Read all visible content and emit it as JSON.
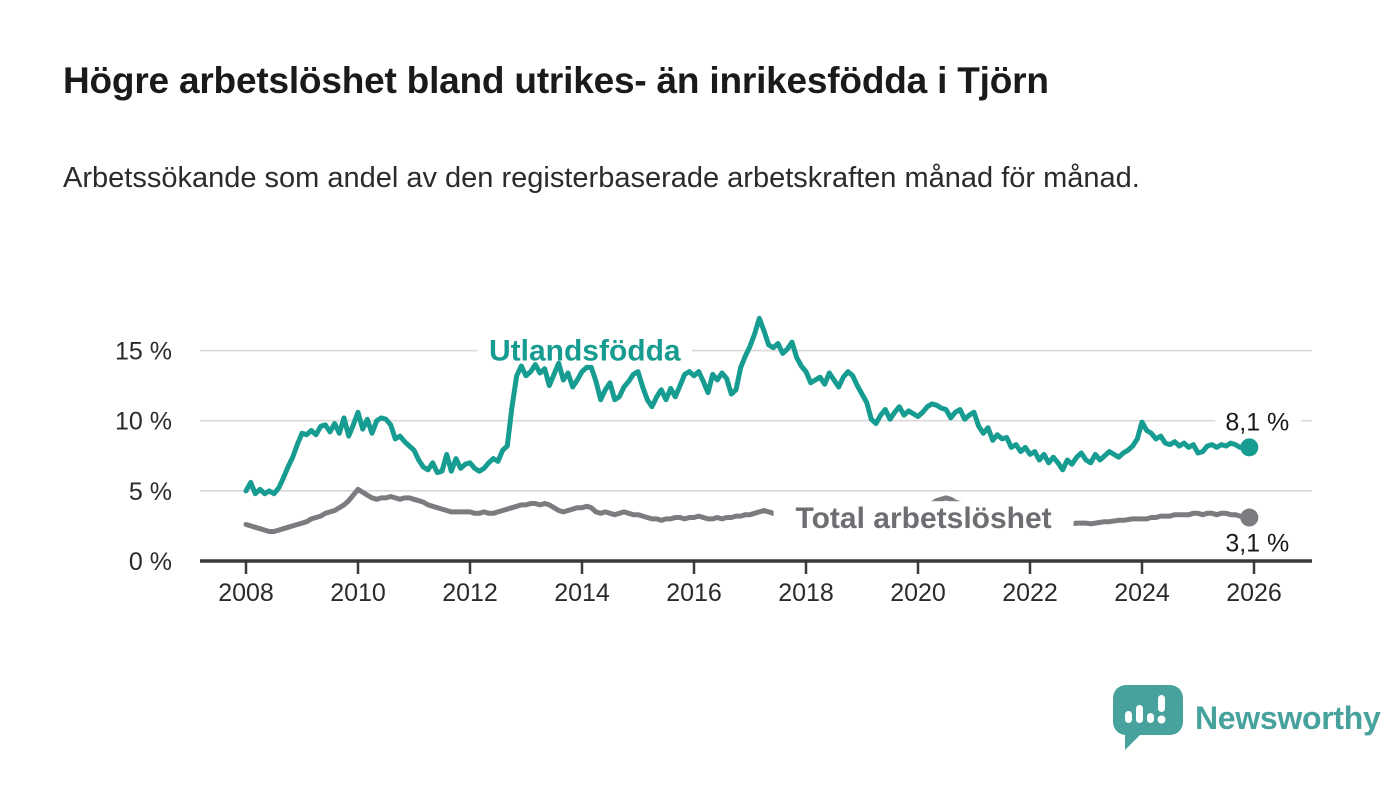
{
  "header": {
    "title": "Högre arbetslöshet bland utrikes- än inrikesfödda i Tjörn",
    "subtitle": "Arbetssökande som andel av den registerbaserade arbetskraften månad för månad."
  },
  "footer": {
    "brand": "Newsworthy",
    "logo_icon": "bar-chart-speech-bubble-icon"
  },
  "colors": {
    "teal_line": "#169c90",
    "gray_line": "#7c7c80",
    "gray_label": "#6d6d72",
    "axis": "#3a3a3a",
    "grid": "#d9d9d9",
    "tick_text": "#2b2b2b",
    "annotation_text": "#1a1a1a",
    "logo_teal": "#47a29d",
    "background": "#ffffff"
  },
  "chart_data": {
    "type": "line",
    "title": "Högre arbetslöshet bland utrikes- än inrikesfödda i Tjörn",
    "subtitle": "Arbetssökande som andel av den registerbaserade arbetskraften månad för månad.",
    "unit": "%",
    "x_start_year": 2008,
    "x_step_months": 1,
    "xlim": [
      2008,
      2026.1
    ],
    "ylim": [
      0,
      17.5
    ],
    "grid": "horizontal",
    "x_ticks": [
      "2008",
      "2010",
      "2012",
      "2014",
      "2016",
      "2018",
      "2020",
      "2022",
      "2024",
      "2026"
    ],
    "x_tick_years": [
      2008,
      2010,
      2012,
      2014,
      2016,
      2018,
      2020,
      2022,
      2024,
      2026
    ],
    "y_ticks": [
      "0 %",
      "5 %",
      "10 %",
      "15 %"
    ],
    "y_tick_values": [
      0,
      5,
      10,
      15
    ],
    "series": [
      {
        "name": "Utlandsfödda",
        "color": "#169c90",
        "end_label": "8,1 %",
        "end_value": 8.1,
        "label_anchor": {
          "year": 2014.05,
          "value": 15.0
        },
        "values": [
          5.0,
          5.6,
          4.8,
          5.1,
          4.8,
          5.0,
          4.8,
          5.2,
          5.9,
          6.7,
          7.4,
          8.3,
          9.1,
          9.0,
          9.3,
          9.0,
          9.6,
          9.7,
          9.2,
          9.8,
          9.1,
          10.2,
          8.9,
          9.7,
          10.6,
          9.4,
          10.1,
          9.1,
          10.0,
          10.2,
          10.1,
          9.7,
          8.7,
          8.9,
          8.5,
          8.2,
          7.9,
          7.2,
          6.7,
          6.5,
          7.0,
          6.3,
          6.4,
          7.6,
          6.4,
          7.3,
          6.6,
          6.9,
          7.0,
          6.6,
          6.4,
          6.6,
          7.0,
          7.3,
          7.1,
          7.9,
          8.2,
          11.0,
          13.2,
          13.9,
          13.2,
          13.5,
          14.0,
          13.4,
          13.7,
          12.5,
          13.3,
          14.1,
          12.9,
          13.4,
          12.4,
          12.9,
          13.5,
          13.8,
          13.8,
          12.8,
          11.5,
          12.2,
          12.7,
          11.5,
          11.7,
          12.4,
          12.8,
          13.3,
          13.5,
          12.4,
          11.5,
          11.0,
          11.7,
          12.2,
          11.5,
          12.3,
          11.7,
          12.5,
          13.3,
          13.5,
          13.2,
          13.5,
          12.8,
          12.0,
          13.3,
          12.9,
          13.4,
          13.0,
          11.9,
          12.2,
          13.8,
          14.6,
          15.3,
          16.2,
          17.3,
          16.4,
          15.4,
          15.2,
          15.5,
          14.8,
          15.1,
          15.6,
          14.5,
          13.9,
          13.5,
          12.7,
          12.9,
          13.1,
          12.6,
          13.4,
          12.9,
          12.4,
          13.1,
          13.5,
          13.2,
          12.5,
          11.9,
          11.3,
          10.1,
          9.8,
          10.4,
          10.8,
          10.1,
          10.6,
          11.0,
          10.4,
          10.7,
          10.5,
          10.3,
          10.6,
          11.0,
          11.2,
          11.1,
          10.9,
          10.8,
          10.2,
          10.6,
          10.8,
          10.1,
          10.4,
          10.6,
          9.6,
          9.1,
          9.5,
          8.6,
          9.0,
          8.7,
          8.8,
          8.1,
          8.3,
          7.8,
          8.1,
          7.6,
          7.8,
          7.2,
          7.6,
          7.0,
          7.4,
          7.0,
          6.5,
          7.2,
          6.9,
          7.4,
          7.7,
          7.2,
          7.0,
          7.6,
          7.2,
          7.5,
          7.8,
          7.6,
          7.4,
          7.7,
          7.9,
          8.2,
          8.7,
          9.9,
          9.3,
          9.1,
          8.7,
          8.9,
          8.4,
          8.3,
          8.5,
          8.2,
          8.4,
          8.1,
          8.3,
          7.7,
          7.8,
          8.2,
          8.3,
          8.1,
          8.3,
          8.2,
          8.4,
          8.3,
          8.1,
          8.2,
          8.1
        ]
      },
      {
        "name": "Total arbetslöshet",
        "color": "#7c7c80",
        "label_color": "#6d6d72",
        "end_label": "3,1 %",
        "end_value": 3.1,
        "label_anchor": {
          "year": 2020.1,
          "value": 3.05
        },
        "values": [
          2.6,
          2.5,
          2.4,
          2.3,
          2.2,
          2.1,
          2.1,
          2.2,
          2.3,
          2.4,
          2.5,
          2.6,
          2.7,
          2.8,
          3.0,
          3.1,
          3.2,
          3.4,
          3.5,
          3.6,
          3.8,
          4.0,
          4.3,
          4.7,
          5.1,
          4.9,
          4.7,
          4.5,
          4.4,
          4.5,
          4.5,
          4.6,
          4.5,
          4.4,
          4.5,
          4.5,
          4.4,
          4.3,
          4.2,
          4.0,
          3.9,
          3.8,
          3.7,
          3.6,
          3.5,
          3.5,
          3.5,
          3.5,
          3.5,
          3.4,
          3.4,
          3.5,
          3.4,
          3.4,
          3.5,
          3.6,
          3.7,
          3.8,
          3.9,
          4.0,
          4.0,
          4.1,
          4.1,
          4.0,
          4.1,
          4.0,
          3.8,
          3.6,
          3.5,
          3.6,
          3.7,
          3.8,
          3.8,
          3.9,
          3.8,
          3.5,
          3.4,
          3.5,
          3.4,
          3.3,
          3.4,
          3.5,
          3.4,
          3.3,
          3.3,
          3.2,
          3.1,
          3.0,
          3.0,
          2.9,
          3.0,
          3.0,
          3.1,
          3.1,
          3.0,
          3.1,
          3.1,
          3.2,
          3.1,
          3.0,
          3.0,
          3.1,
          3.0,
          3.1,
          3.1,
          3.2,
          3.2,
          3.3,
          3.3,
          3.4,
          3.5,
          3.6,
          3.5,
          3.4,
          3.3,
          3.2,
          3.2,
          3.1,
          3.1,
          3.0,
          3.0,
          3.0,
          2.9,
          2.9,
          2.8,
          2.8,
          2.9,
          2.9,
          2.8,
          2.8,
          2.9,
          2.9,
          2.9,
          3.0,
          3.0,
          3.1,
          3.1,
          3.2,
          3.2,
          3.3,
          3.3,
          3.3,
          3.4,
          3.4,
          3.5,
          3.6,
          3.8,
          4.1,
          4.3,
          4.4,
          4.5,
          4.4,
          4.2,
          4.1,
          4.0,
          3.9,
          3.8,
          3.7,
          3.6,
          3.5,
          3.4,
          3.3,
          3.2,
          3.1,
          3.0,
          3.0,
          2.9,
          2.9,
          2.9,
          2.85,
          2.8,
          2.8,
          2.75,
          2.8,
          2.75,
          2.7,
          2.7,
          2.65,
          2.7,
          2.7,
          2.7,
          2.65,
          2.7,
          2.75,
          2.8,
          2.8,
          2.85,
          2.9,
          2.9,
          2.95,
          3.0,
          3.0,
          3.0,
          3.0,
          3.1,
          3.1,
          3.2,
          3.2,
          3.2,
          3.3,
          3.3,
          3.3,
          3.3,
          3.4,
          3.4,
          3.3,
          3.4,
          3.4,
          3.3,
          3.4,
          3.4,
          3.3,
          3.3,
          3.2,
          3.2,
          3.1
        ]
      }
    ]
  }
}
